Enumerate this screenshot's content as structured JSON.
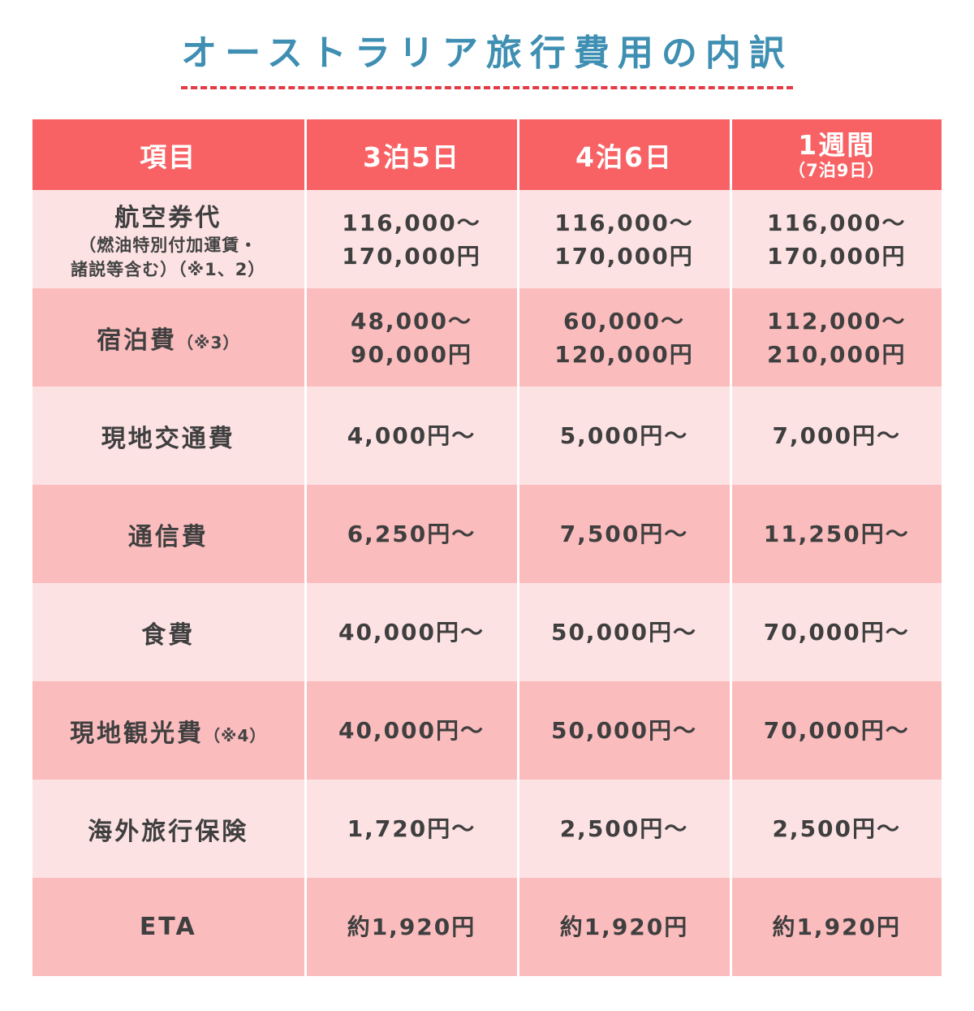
{
  "title": "オーストラリア旅行費用の内訳",
  "header": {
    "item": "項目",
    "col1": "3泊5日",
    "col2": "4泊6日",
    "col3_main": "1週間",
    "col3_sub": "（7泊9日）"
  },
  "rows": [
    {
      "label": "航空券代",
      "sub1": "（燃油特別付加運賃・",
      "sub2": "諸説等含む）（※1、2）",
      "v1a": "116,000～",
      "v1b": "170,000円",
      "v2a": "116,000～",
      "v2b": "170,000円",
      "v3a": "116,000～",
      "v3b": "170,000円"
    },
    {
      "label": "宿泊費",
      "note": "（※3）",
      "v1a": "48,000～",
      "v1b": "90,000円",
      "v2a": "60,000～",
      "v2b": "120,000円",
      "v3a": "112,000～",
      "v3b": "210,000円"
    },
    {
      "label": "現地交通費",
      "v1": "4,000円～",
      "v2": "5,000円～",
      "v3": "7,000円～"
    },
    {
      "label": "通信費",
      "v1": "6,250円～",
      "v2": "7,500円～",
      "v3": "11,250円～"
    },
    {
      "label": "食費",
      "v1": "40,000円～",
      "v2": "50,000円～",
      "v3": "70,000円～"
    },
    {
      "label": "現地観光費",
      "note": "（※4）",
      "v1": "40,000円～",
      "v2": "50,000円～",
      "v3": "70,000円～"
    },
    {
      "label": "海外旅行保険",
      "v1": "1,720円～",
      "v2": "2,500円～",
      "v3": "2,500円～"
    },
    {
      "label": "ETA",
      "v1": "約1,920円",
      "v2": "約1,920円",
      "v3": "約1,920円"
    }
  ],
  "colors": {
    "title": "#3f8fb3",
    "title_underline": "#e23b45",
    "header_bg": "#f86264",
    "row_light": "#fde2e4",
    "row_dark": "#fbbcbe"
  }
}
